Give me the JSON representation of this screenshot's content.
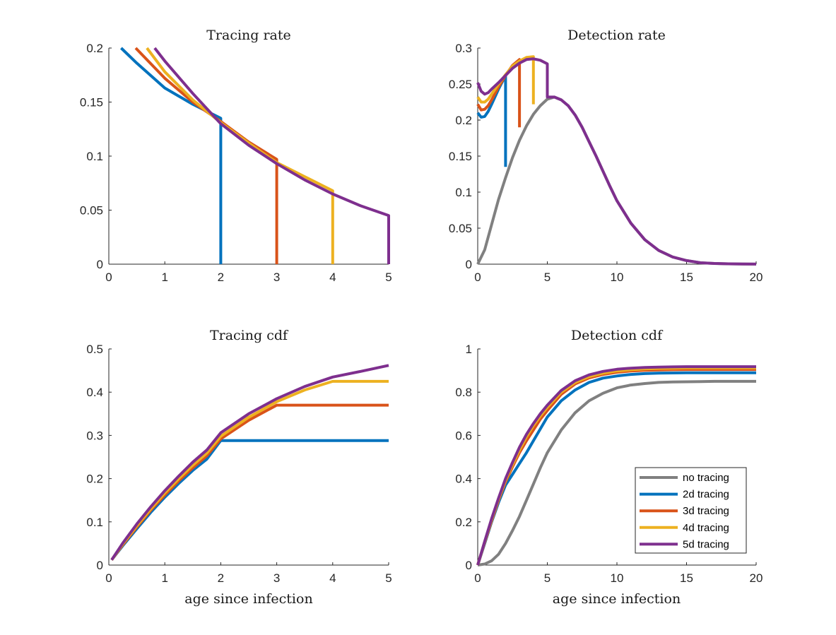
{
  "colors": {
    "no tracing": "#808080",
    "2d tracing": "#0072BD",
    "3d tracing": "#D95319",
    "4d tracing": "#EDB120",
    "5d tracing": "#7E2F8E"
  },
  "chart_data": [
    {
      "id": "tracing_rate",
      "type": "line",
      "title": "Tracing rate",
      "xlabel": "",
      "ylabel": "",
      "xlim": [
        0,
        5
      ],
      "ylim": [
        0,
        0.2
      ],
      "xticks": [
        0,
        1,
        2,
        3,
        4,
        5
      ],
      "yticks": [
        0,
        0.05,
        0.1,
        0.15,
        0.2
      ],
      "xtick_labels": [
        "0",
        "1",
        "2",
        "3",
        "4",
        "5"
      ],
      "ytick_labels": [
        "0",
        "0.05",
        "0.1",
        "0.15",
        "0.2"
      ],
      "series": [
        {
          "name": "2d tracing",
          "x": [
            0.22,
            0.5,
            1.0,
            1.5,
            2.0,
            2.0
          ],
          "y": [
            0.2,
            0.186,
            0.163,
            0.148,
            0.135,
            0
          ]
        },
        {
          "name": "3d tracing",
          "x": [
            0.48,
            1.0,
            1.5,
            2.0,
            2.5,
            3.0,
            3.0
          ],
          "y": [
            0.2,
            0.172,
            0.15,
            0.132,
            0.113,
            0.097,
            0
          ]
        },
        {
          "name": "4d tracing",
          "x": [
            0.68,
            1.0,
            1.5,
            2.0,
            2.5,
            3.0,
            3.5,
            4.0,
            4.0
          ],
          "y": [
            0.2,
            0.178,
            0.152,
            0.131,
            0.112,
            0.094,
            0.081,
            0.068,
            0
          ]
        },
        {
          "name": "5d tracing",
          "x": [
            0.82,
            1.0,
            1.5,
            2.0,
            2.5,
            3.0,
            3.5,
            4.0,
            4.5,
            5.0,
            5.0
          ],
          "y": [
            0.2,
            0.188,
            0.158,
            0.13,
            0.11,
            0.093,
            0.078,
            0.065,
            0.054,
            0.045,
            0
          ]
        }
      ]
    },
    {
      "id": "detection_rate",
      "type": "line",
      "title": "Detection rate",
      "xlabel": "",
      "ylabel": "",
      "xlim": [
        0,
        20
      ],
      "ylim": [
        0,
        0.3
      ],
      "xticks": [
        0,
        5,
        10,
        15,
        20
      ],
      "yticks": [
        0,
        0.05,
        0.1,
        0.15,
        0.2,
        0.25,
        0.3
      ],
      "xtick_labels": [
        "0",
        "5",
        "10",
        "15",
        "20"
      ],
      "ytick_labels": [
        "0",
        "0.05",
        "0.1",
        "0.15",
        "0.2",
        "0.25",
        "0.3"
      ],
      "series": [
        {
          "name": "no tracing",
          "x": [
            0,
            0.5,
            1,
            1.5,
            2,
            2.5,
            3,
            3.5,
            4,
            4.5,
            5,
            5.5,
            6,
            6.5,
            7,
            7.5,
            8,
            8.5,
            9,
            9.5,
            10,
            11,
            12,
            13,
            14,
            15,
            16,
            17,
            18,
            19,
            20
          ],
          "y": [
            0,
            0.02,
            0.055,
            0.09,
            0.12,
            0.148,
            0.172,
            0.192,
            0.208,
            0.22,
            0.229,
            0.232,
            0.228,
            0.22,
            0.207,
            0.19,
            0.17,
            0.15,
            0.129,
            0.108,
            0.088,
            0.057,
            0.034,
            0.019,
            0.01,
            0.005,
            0.002,
            0.001,
            0.0005,
            0.0002,
            0.0001
          ]
        },
        {
          "name": "2d tracing",
          "x": [
            0,
            0.25,
            0.5,
            0.75,
            1.0,
            1.5,
            2.0,
            2.0
          ],
          "y": [
            0.21,
            0.204,
            0.205,
            0.212,
            0.222,
            0.243,
            0.262,
            0.135
          ]
        },
        {
          "name": "3d tracing",
          "x": [
            0,
            0.25,
            0.5,
            0.75,
            1.0,
            1.5,
            2.0,
            2.5,
            3.0,
            3.0
          ],
          "y": [
            0.222,
            0.214,
            0.215,
            0.22,
            0.228,
            0.246,
            0.262,
            0.276,
            0.284,
            0.19
          ]
        },
        {
          "name": "4d tracing",
          "x": [
            0,
            0.25,
            0.5,
            0.75,
            1.0,
            1.5,
            2.0,
            2.5,
            3.0,
            3.5,
            4.0,
            4.0
          ],
          "y": [
            0.232,
            0.225,
            0.225,
            0.229,
            0.236,
            0.25,
            0.263,
            0.275,
            0.282,
            0.287,
            0.288,
            0.222
          ]
        },
        {
          "name": "5d tracing",
          "x": [
            0,
            0.25,
            0.5,
            0.75,
            1.0,
            1.5,
            2.0,
            2.5,
            3.0,
            3.5,
            4.0,
            4.5,
            5.0,
            5.0,
            5.5,
            6,
            6.5,
            7,
            7.5,
            8,
            8.5,
            9,
            9.5,
            10,
            11,
            12,
            13,
            14,
            15,
            16,
            17,
            18,
            19,
            20
          ],
          "y": [
            0.252,
            0.24,
            0.236,
            0.238,
            0.243,
            0.252,
            0.262,
            0.272,
            0.279,
            0.284,
            0.285,
            0.283,
            0.278,
            0.232,
            0.232,
            0.228,
            0.22,
            0.207,
            0.19,
            0.17,
            0.15,
            0.129,
            0.108,
            0.088,
            0.057,
            0.034,
            0.019,
            0.01,
            0.005,
            0.002,
            0.001,
            0.0005,
            0.0002,
            0.0001
          ]
        }
      ]
    },
    {
      "id": "tracing_cdf",
      "type": "line",
      "title": "Tracing cdf",
      "xlabel": "age since infection",
      "ylabel": "",
      "xlim": [
        0,
        5
      ],
      "ylim": [
        0,
        0.5
      ],
      "xticks": [
        0,
        1,
        2,
        3,
        4,
        5
      ],
      "yticks": [
        0,
        0.1,
        0.2,
        0.3,
        0.4,
        0.5
      ],
      "xtick_labels": [
        "0",
        "1",
        "2",
        "3",
        "4",
        "5"
      ],
      "ytick_labels": [
        "0",
        "0.1",
        "0.2",
        "0.3",
        "0.4",
        "0.5"
      ],
      "series": [
        {
          "name": "2d tracing",
          "x": [
            0.05,
            0.25,
            0.5,
            0.75,
            1.0,
            1.25,
            1.5,
            1.75,
            2.0,
            3.0,
            4.0,
            5.0
          ],
          "y": [
            0.012,
            0.045,
            0.084,
            0.122,
            0.157,
            0.189,
            0.219,
            0.245,
            0.288,
            0.288,
            0.288,
            0.288
          ]
        },
        {
          "name": "3d tracing",
          "x": [
            0.05,
            0.25,
            0.5,
            0.75,
            1.0,
            1.25,
            1.5,
            1.75,
            2.0,
            2.5,
            3.0,
            4.0,
            5.0
          ],
          "y": [
            0.012,
            0.047,
            0.088,
            0.127,
            0.162,
            0.195,
            0.225,
            0.253,
            0.292,
            0.335,
            0.37,
            0.37,
            0.37
          ]
        },
        {
          "name": "4d tracing",
          "x": [
            0.05,
            0.25,
            0.5,
            0.75,
            1.0,
            1.25,
            1.5,
            1.75,
            2.0,
            2.5,
            3.0,
            3.5,
            4.0,
            5.0
          ],
          "y": [
            0.012,
            0.049,
            0.091,
            0.13,
            0.167,
            0.2,
            0.231,
            0.259,
            0.298,
            0.342,
            0.378,
            0.405,
            0.425,
            0.425
          ]
        },
        {
          "name": "5d tracing",
          "x": [
            0.05,
            0.25,
            0.5,
            0.75,
            1.0,
            1.25,
            1.5,
            1.75,
            2.0,
            2.5,
            3.0,
            3.5,
            4.0,
            4.5,
            5.0
          ],
          "y": [
            0.012,
            0.051,
            0.095,
            0.135,
            0.172,
            0.206,
            0.238,
            0.266,
            0.306,
            0.35,
            0.385,
            0.413,
            0.435,
            0.448,
            0.462
          ]
        }
      ]
    },
    {
      "id": "detection_cdf",
      "type": "line",
      "title": "Detection cdf",
      "xlabel": "age since infection",
      "ylabel": "",
      "xlim": [
        0,
        20
      ],
      "ylim": [
        0,
        1
      ],
      "xticks": [
        0,
        5,
        10,
        15,
        20
      ],
      "yticks": [
        0,
        0.2,
        0.4,
        0.6,
        0.8,
        1
      ],
      "xtick_labels": [
        "0",
        "5",
        "10",
        "15",
        "20"
      ],
      "ytick_labels": [
        "0",
        "0.2",
        "0.4",
        "0.6",
        "0.8",
        "1"
      ],
      "legend": {
        "position": "bottom-right",
        "entries": [
          "no tracing",
          "2d tracing",
          "3d tracing",
          "4d tracing",
          "5d tracing"
        ]
      },
      "series": [
        {
          "name": "no tracing",
          "x": [
            0,
            0.5,
            1,
            1.5,
            2,
            2.5,
            3,
            3.5,
            4,
            4.5,
            5,
            6,
            7,
            8,
            9,
            10,
            11,
            12,
            13,
            14,
            15,
            16,
            17,
            18,
            19,
            20
          ],
          "y": [
            0,
            0.005,
            0.02,
            0.05,
            0.1,
            0.16,
            0.225,
            0.3,
            0.375,
            0.45,
            0.52,
            0.625,
            0.705,
            0.76,
            0.795,
            0.82,
            0.833,
            0.84,
            0.845,
            0.847,
            0.848,
            0.849,
            0.85,
            0.85,
            0.85,
            0.85
          ]
        },
        {
          "name": "2d tracing",
          "x": [
            0,
            0.5,
            1,
            1.5,
            2,
            2.5,
            3,
            3.5,
            4,
            4.5,
            5,
            6,
            7,
            8,
            9,
            10,
            11,
            12,
            13,
            14,
            15,
            16,
            17,
            18,
            19,
            20
          ],
          "y": [
            0,
            0.1,
            0.2,
            0.29,
            0.37,
            0.42,
            0.47,
            0.52,
            0.575,
            0.63,
            0.685,
            0.76,
            0.81,
            0.845,
            0.865,
            0.875,
            0.882,
            0.886,
            0.888,
            0.889,
            0.89,
            0.89,
            0.89,
            0.89,
            0.89,
            0.89
          ]
        },
        {
          "name": "3d tracing",
          "x": [
            0,
            0.5,
            1,
            1.5,
            2,
            2.5,
            3,
            3.5,
            4,
            4.5,
            5,
            6,
            7,
            8,
            9,
            10,
            11,
            12,
            13,
            14,
            15,
            16,
            17,
            18,
            19,
            20
          ],
          "y": [
            0,
            0.105,
            0.205,
            0.3,
            0.385,
            0.455,
            0.52,
            0.575,
            0.625,
            0.675,
            0.715,
            0.79,
            0.838,
            0.866,
            0.882,
            0.892,
            0.898,
            0.901,
            0.903,
            0.904,
            0.905,
            0.905,
            0.905,
            0.905,
            0.905,
            0.905
          ]
        },
        {
          "name": "4d tracing",
          "x": [
            0,
            0.5,
            1,
            1.5,
            2,
            2.5,
            3,
            3.5,
            4,
            4.5,
            5,
            6,
            7,
            8,
            9,
            10,
            11,
            12,
            13,
            14,
            15,
            16,
            17,
            18,
            19,
            20
          ],
          "y": [
            0,
            0.108,
            0.21,
            0.305,
            0.392,
            0.465,
            0.532,
            0.593,
            0.645,
            0.69,
            0.73,
            0.8,
            0.845,
            0.872,
            0.888,
            0.898,
            0.904,
            0.908,
            0.91,
            0.911,
            0.912,
            0.912,
            0.912,
            0.912,
            0.912,
            0.912
          ]
        },
        {
          "name": "5d tracing",
          "x": [
            0,
            0.5,
            1,
            1.5,
            2,
            2.5,
            3,
            3.5,
            4,
            4.5,
            5,
            6,
            7,
            8,
            9,
            10,
            11,
            12,
            13,
            14,
            15,
            16,
            17,
            18,
            19,
            20
          ],
          "y": [
            0,
            0.11,
            0.215,
            0.31,
            0.4,
            0.475,
            0.545,
            0.605,
            0.655,
            0.7,
            0.74,
            0.808,
            0.853,
            0.88,
            0.896,
            0.906,
            0.911,
            0.914,
            0.916,
            0.917,
            0.918,
            0.918,
            0.918,
            0.918,
            0.918,
            0.918
          ]
        }
      ]
    }
  ]
}
